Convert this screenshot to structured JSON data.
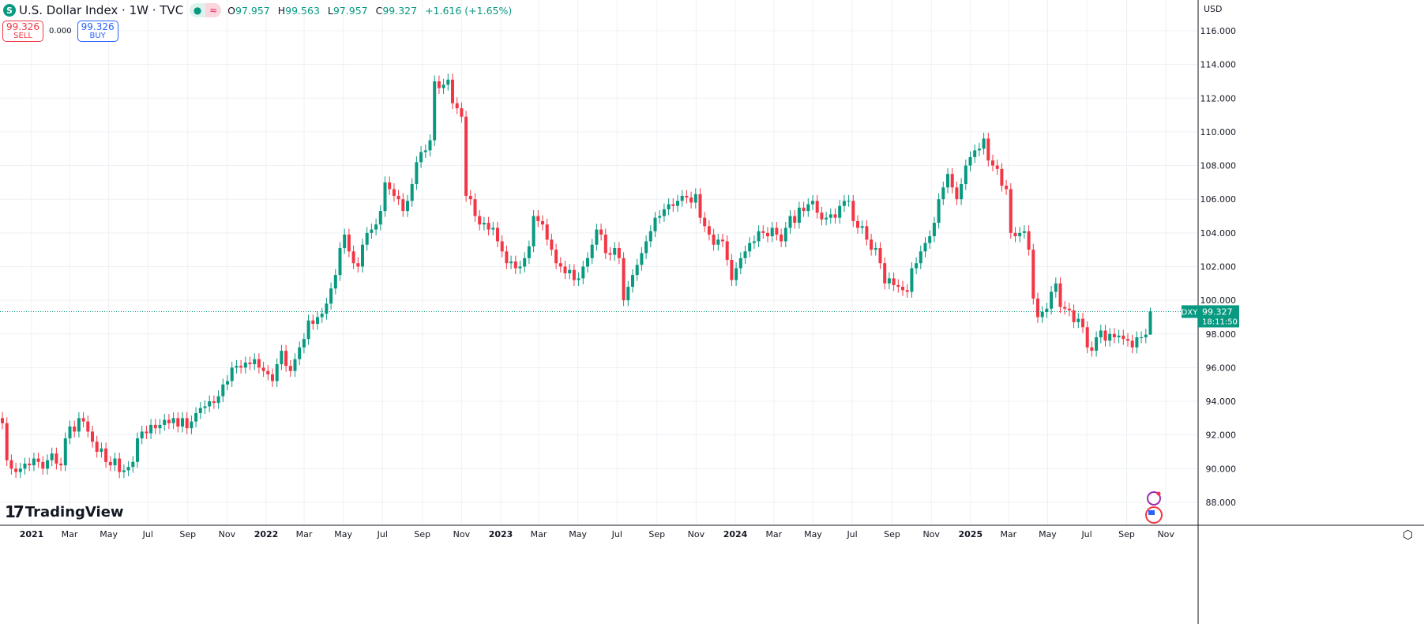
{
  "header": {
    "symbol_icon": "S",
    "title": "U.S. Dollar Index · 1W · TVC",
    "status_icons": [
      "market-open-dot-icon",
      "delayed-data-icon"
    ],
    "open_label": "O",
    "open": "97.957",
    "high_label": "H",
    "high": "99.563",
    "low_label": "L",
    "low": "97.957",
    "close_label": "C",
    "close": "99.327",
    "change": "+1.616 (+1.65%)"
  },
  "trade": {
    "sell_price": "99.326",
    "sell_label": "SELL",
    "spread": "0.000",
    "buy_price": "99.326",
    "buy_label": "BUY"
  },
  "currency": "USD",
  "brand": "TradingView",
  "last_price": {
    "ticker": "DXY",
    "value": "99.327",
    "countdown": "18:11:50"
  },
  "colors": {
    "up": "#089981",
    "down": "#f23645",
    "grid": "#eef1f5"
  },
  "chart_data": {
    "type": "candlestick",
    "interval": "1W",
    "ylim": [
      86.6,
      117.8
    ],
    "y_ticks": [
      "88.000",
      "90.000",
      "92.000",
      "94.000",
      "96.000",
      "98.000",
      "100.000",
      "102.000",
      "104.000",
      "106.000",
      "108.000",
      "110.000",
      "112.000",
      "114.000",
      "116.000"
    ],
    "x_ticks": [
      "2021",
      "Mar",
      "May",
      "Jul",
      "Sep",
      "Nov",
      "2022",
      "Mar",
      "May",
      "Jul",
      "Sep",
      "Nov",
      "2023",
      "Mar",
      "May",
      "Jul",
      "Sep",
      "Nov",
      "2024",
      "Mar",
      "May",
      "Jul",
      "Sep",
      "Nov",
      "2025",
      "Mar",
      "May",
      "Jul",
      "Sep",
      "Nov"
    ],
    "grid": true,
    "first_open": 93.0,
    "closes": [
      92.7,
      90.5,
      90.0,
      89.8,
      90.0,
      90.3,
      90.2,
      90.6,
      90.4,
      90.0,
      90.5,
      90.9,
      90.3,
      90.2,
      91.8,
      92.5,
      92.2,
      93.0,
      92.8,
      92.2,
      91.6,
      91.0,
      91.2,
      90.4,
      90.2,
      90.6,
      89.8,
      89.9,
      90.1,
      90.4,
      91.8,
      92.2,
      92.1,
      92.6,
      92.4,
      92.6,
      92.9,
      92.7,
      93.0,
      92.5,
      93.0,
      92.4,
      92.8,
      93.3,
      93.6,
      93.7,
      94.0,
      93.9,
      94.3,
      95.0,
      95.2,
      96.0,
      96.1,
      96.0,
      96.3,
      96.2,
      96.5,
      96.0,
      95.8,
      95.6,
      95.2,
      96.2,
      97.0,
      96.1,
      95.8,
      96.5,
      97.2,
      97.7,
      98.8,
      98.6,
      99.0,
      99.2,
      99.8,
      100.7,
      101.5,
      103.1,
      103.9,
      102.9,
      102.2,
      102.0,
      103.3,
      104.0,
      104.2,
      104.5,
      105.3,
      107.0,
      106.6,
      106.2,
      106.0,
      105.3,
      105.9,
      106.9,
      108.2,
      108.8,
      108.9,
      109.5,
      113.0,
      112.6,
      112.8,
      113.1,
      111.7,
      111.4,
      110.9,
      106.2,
      106.0,
      105.0,
      104.5,
      104.6,
      104.2,
      104.3,
      103.5,
      102.9,
      102.2,
      102.3,
      101.9,
      102.0,
      102.5,
      103.2,
      105.0,
      104.7,
      104.5,
      103.6,
      103.0,
      102.2,
      102.0,
      101.6,
      101.8,
      101.2,
      101.3,
      102.0,
      102.5,
      103.3,
      104.2,
      103.9,
      102.8,
      102.7,
      103.1,
      102.5,
      100.0,
      100.8,
      101.5,
      102.1,
      102.8,
      103.5,
      104.1,
      104.9,
      105.0,
      105.4,
      105.7,
      105.6,
      105.9,
      106.2,
      106.1,
      105.8,
      106.3,
      104.9,
      104.4,
      103.9,
      103.3,
      103.6,
      103.5,
      102.4,
      101.2,
      101.9,
      102.5,
      102.9,
      103.4,
      103.5,
      104.1,
      104.0,
      103.8,
      104.3,
      103.9,
      103.5,
      104.3,
      105.0,
      104.6,
      105.5,
      105.3,
      105.7,
      105.9,
      105.2,
      104.8,
      104.9,
      105.1,
      104.9,
      105.6,
      105.9,
      105.9,
      104.7,
      104.3,
      104.4,
      103.6,
      103.0,
      103.1,
      102.2,
      101.0,
      101.3,
      100.9,
      100.8,
      100.6,
      100.5,
      101.9,
      102.2,
      102.9,
      103.4,
      103.8,
      104.6,
      106.0,
      106.7,
      107.5,
      106.7,
      106.0,
      106.9,
      108.0,
      108.5,
      108.9,
      109.0,
      109.6,
      108.3,
      108.0,
      107.8,
      106.8,
      106.6,
      104.0,
      103.8,
      104.0,
      104.1,
      103.0,
      100.1,
      99.0,
      99.3,
      99.5,
      100.5,
      101.0,
      99.6,
      99.5,
      99.4,
      98.7,
      98.9,
      98.4,
      97.2,
      97.0,
      97.8,
      98.2,
      97.6,
      98.0,
      97.8,
      97.9,
      97.7,
      97.6,
      97.2,
      97.8,
      97.8,
      97.957,
      99.327
    ],
    "last_candle": {
      "open": 97.957,
      "high": 99.563,
      "low": 97.957,
      "close": 99.327
    }
  }
}
